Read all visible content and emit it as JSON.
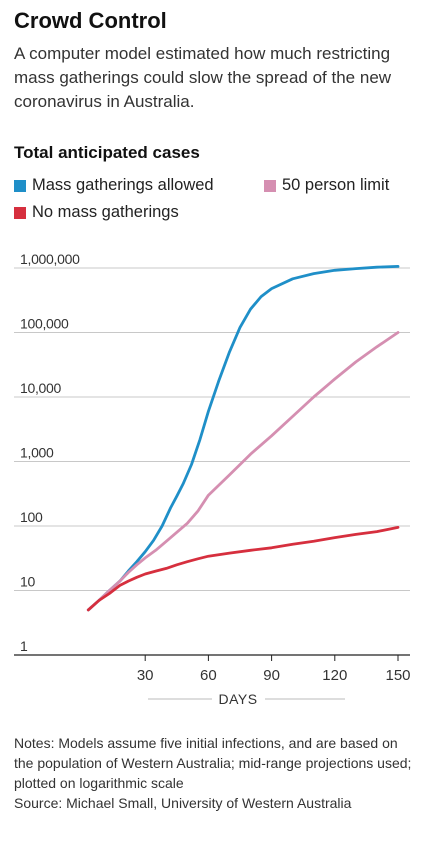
{
  "header": {
    "title": "Crowd Control",
    "subtitle": "A computer model estimated how much restricting mass gatherings could slow the spread of the new coronavirus in Australia.",
    "section_title": "Total anticipated cases"
  },
  "legend": [
    {
      "label": "Mass gatherings allowed",
      "color": "#1f8fc8"
    },
    {
      "label": "50 person limit",
      "color": "#d58fb1"
    },
    {
      "label": "No mass gatherings",
      "color": "#d62f3e"
    }
  ],
  "notes": {
    "text": "Notes: Models assume five initial infections, and are based on the population of Western Australia; mid-range projections used; plotted on logarithmic scale",
    "source": "Source: Michael Small, University of Western Australia"
  },
  "chart_data": {
    "type": "line",
    "title": "Total anticipated cases",
    "xlabel": "DAYS",
    "ylabel": "",
    "xlim": [
      0,
      150
    ],
    "ylim": [
      1,
      1000000
    ],
    "y_scale": "log",
    "xticks": [
      30,
      60,
      90,
      120,
      150
    ],
    "xtick_labels": [
      "30",
      "60",
      "90",
      "120",
      "150"
    ],
    "yticks": [
      1,
      10,
      100,
      1000,
      10000,
      100000,
      1000000
    ],
    "ytick_labels": [
      "1",
      "10",
      "100",
      "1,000",
      "10,000",
      "100,000",
      "1,000,000"
    ],
    "grid": "horizontal",
    "legend_position": "top",
    "series": [
      {
        "name": "Mass gatherings allowed",
        "color": "#1f8fc8",
        "x": [
          3,
          8,
          13,
          18,
          22,
          26,
          30,
          34,
          38,
          42,
          45,
          48,
          52,
          56,
          60,
          65,
          70,
          75,
          80,
          85,
          90,
          100,
          110,
          120,
          130,
          140,
          150
        ],
        "y": [
          5,
          7,
          10,
          14,
          20,
          28,
          40,
          60,
          100,
          190,
          290,
          450,
          900,
          2200,
          6000,
          18000,
          50000,
          120000,
          230000,
          360000,
          480000,
          680000,
          820000,
          920000,
          980000,
          1030000,
          1060000
        ]
      },
      {
        "name": "50 person limit",
        "color": "#d58fb1",
        "x": [
          3,
          8,
          13,
          18,
          22,
          26,
          30,
          35,
          40,
          45,
          50,
          55,
          60,
          70,
          80,
          90,
          100,
          110,
          120,
          130,
          140,
          150
        ],
        "y": [
          5,
          7,
          10,
          14,
          19,
          25,
          32,
          42,
          58,
          80,
          110,
          170,
          300,
          620,
          1300,
          2500,
          5000,
          10000,
          19000,
          35000,
          60000,
          100000
        ]
      },
      {
        "name": "No mass gatherings",
        "color": "#d62f3e",
        "x": [
          3,
          8,
          13,
          18,
          22,
          26,
          30,
          35,
          40,
          45,
          50,
          55,
          60,
          70,
          80,
          90,
          100,
          110,
          120,
          130,
          140,
          150
        ],
        "y": [
          5,
          7,
          9,
          12,
          14,
          16,
          18,
          20,
          22,
          25,
          28,
          31,
          34,
          38,
          42,
          46,
          52,
          58,
          66,
          74,
          82,
          95
        ]
      }
    ]
  }
}
